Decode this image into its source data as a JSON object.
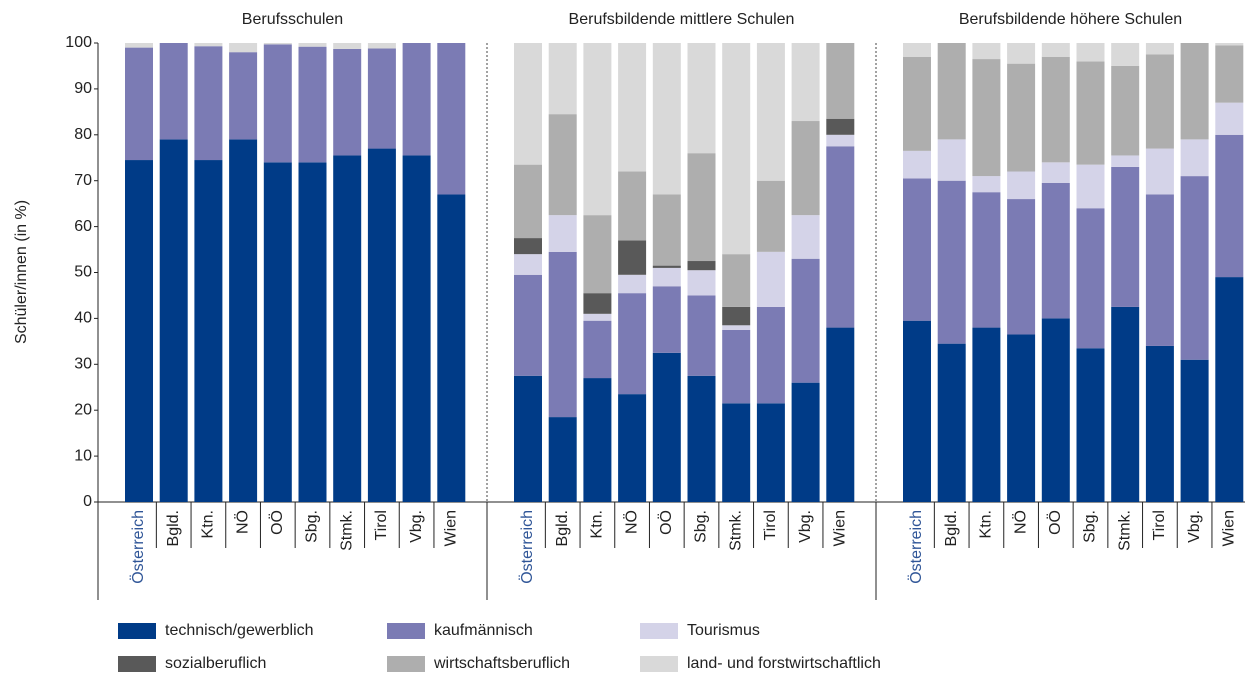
{
  "chart_data": {
    "type": "bar",
    "stacked": true,
    "ylabel": "Schüler/innen (in %)",
    "ylim": [
      0,
      100
    ],
    "yticks": [
      0,
      10,
      20,
      30,
      40,
      50,
      60,
      70,
      80,
      90,
      100
    ],
    "groups": [
      {
        "title": "Berufsschulen",
        "categories": [
          "Österreich",
          "Bgld.",
          "Ktn.",
          "NÖ",
          "OÖ",
          "Sbg.",
          "Stmk.",
          "Tirol",
          "Vbg.",
          "Wien"
        ]
      },
      {
        "title": "Berufsbildende mittlere Schulen",
        "categories": [
          "Österreich",
          "Bgld.",
          "Ktn.",
          "NÖ",
          "OÖ",
          "Sbg.",
          "Stmk.",
          "Tirol",
          "Vbg.",
          "Wien"
        ]
      },
      {
        "title": "Berufsbildende höhere Schulen",
        "categories": [
          "Österreich",
          "Bgld.",
          "Ktn.",
          "NÖ",
          "OÖ",
          "Sbg.",
          "Stmk.",
          "Tirol",
          "Vbg.",
          "Wien"
        ]
      }
    ],
    "series": [
      {
        "name": "technisch/gewerblich",
        "color": "#003b87",
        "values": [
          [
            74.5,
            79,
            74.5,
            79,
            74,
            74,
            75.5,
            77,
            75.5,
            67
          ],
          [
            27.5,
            18.5,
            27,
            23.5,
            32.5,
            27.5,
            21.5,
            21.5,
            26,
            38
          ],
          [
            39.5,
            34.5,
            38,
            36.5,
            40,
            33.5,
            42.5,
            34,
            31,
            49
          ]
        ]
      },
      {
        "name": "kaufmännisch",
        "color": "#7b7bb4",
        "values": [
          [
            24.5,
            21,
            24.8,
            19,
            25.7,
            25.2,
            23.2,
            21.8,
            24.5,
            33
          ],
          [
            22,
            36,
            12.5,
            22,
            14.5,
            17.5,
            16,
            21,
            27,
            39.5
          ],
          [
            31,
            35.5,
            29.5,
            29.5,
            29.5,
            30.5,
            30.5,
            33,
            40,
            31
          ]
        ]
      },
      {
        "name": "Tourismus",
        "color": "#d4d3e8",
        "values": [
          [
            0,
            0,
            0,
            0,
            0,
            0,
            0,
            0,
            0,
            0
          ],
          [
            4.5,
            8,
            1.5,
            4,
            4,
            5.5,
            1,
            12,
            9.5,
            2.5
          ],
          [
            6,
            9,
            3.5,
            6,
            4.5,
            9.5,
            2.5,
            10,
            8,
            7
          ]
        ]
      },
      {
        "name": "sozialberuflich",
        "color": "#595959",
        "values": [
          [
            0,
            0,
            0,
            0,
            0,
            0,
            0,
            0,
            0,
            0
          ],
          [
            3.5,
            0,
            4.5,
            7.5,
            0.5,
            2,
            4,
            0,
            0,
            3.5
          ],
          [
            0,
            0,
            0,
            0,
            0,
            0,
            0,
            0,
            0,
            0
          ]
        ]
      },
      {
        "name": "wirtschaftsberuflich",
        "color": "#aeaeae",
        "values": [
          [
            0,
            0,
            0,
            0,
            0,
            0,
            0,
            0,
            0,
            0
          ],
          [
            16,
            22,
            17,
            15,
            15.5,
            23.5,
            11.5,
            15.5,
            20.5,
            16.5
          ],
          [
            20.5,
            21,
            25.5,
            23.5,
            23,
            22.5,
            19.5,
            20.5,
            21,
            12.5
          ]
        ]
      },
      {
        "name": "land- und forstwirtschaftlich",
        "color": "#d9d9d9",
        "values": [
          [
            1,
            0,
            0.7,
            2,
            0.3,
            0.8,
            1.3,
            1.2,
            0,
            0
          ],
          [
            26.5,
            15.5,
            37.5,
            28,
            33,
            24,
            46,
            30,
            17,
            0
          ],
          [
            3,
            0,
            3.5,
            4.5,
            3,
            4,
            5,
            2.5,
            0,
            0.5
          ]
        ]
      }
    ]
  }
}
